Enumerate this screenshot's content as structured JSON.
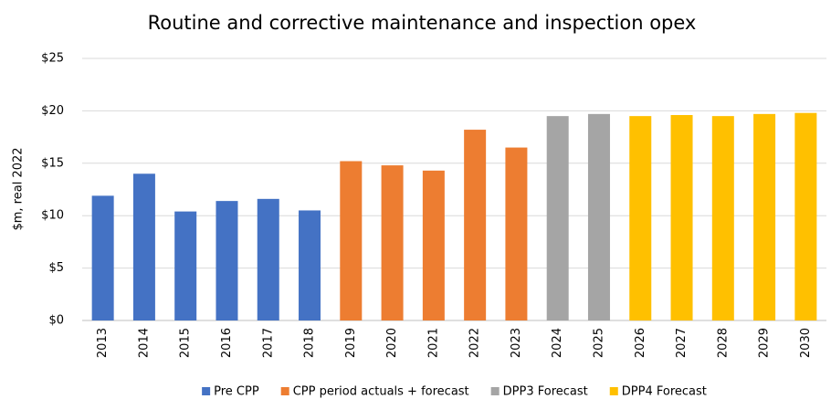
{
  "chart_data": {
    "type": "bar",
    "title": "Routine and corrective maintenance and inspection opex",
    "y_label": "$m, real 2022",
    "categories": [
      "2013",
      "2014",
      "2015",
      "2016",
      "2017",
      "2018",
      "2019",
      "2020",
      "2021",
      "2022",
      "2023",
      "2024",
      "2025",
      "2026",
      "2027",
      "2028",
      "2029",
      "2030"
    ],
    "series": [
      {
        "name": "Pre CPP",
        "color": "#4472c4",
        "values": [
          11.9,
          14.0,
          10.4,
          11.4,
          11.6,
          10.5,
          null,
          null,
          null,
          null,
          null,
          null,
          null,
          null,
          null,
          null,
          null,
          null
        ]
      },
      {
        "name": "CPP period actuals + forecast",
        "color": "#ed7d31",
        "values": [
          null,
          null,
          null,
          null,
          null,
          null,
          15.2,
          14.8,
          14.3,
          18.2,
          16.5,
          null,
          null,
          null,
          null,
          null,
          null,
          null
        ]
      },
      {
        "name": "DPP3 Forecast",
        "color": "#a5a5a5",
        "values": [
          null,
          null,
          null,
          null,
          null,
          null,
          null,
          null,
          null,
          null,
          null,
          19.5,
          19.7,
          null,
          null,
          null,
          null,
          null
        ]
      },
      {
        "name": "DPP4 Forecast",
        "color": "#ffc000",
        "values": [
          null,
          null,
          null,
          null,
          null,
          null,
          null,
          null,
          null,
          null,
          null,
          null,
          null,
          19.5,
          19.6,
          19.5,
          19.7,
          19.8
        ]
      }
    ],
    "ylim": [
      0,
      25
    ],
    "yticks": [
      {
        "value": 0,
        "label": "$0"
      },
      {
        "value": 5,
        "label": "$5"
      },
      {
        "value": 10,
        "label": "$10"
      },
      {
        "value": 15,
        "label": "$15"
      },
      {
        "value": 20,
        "label": "$20"
      },
      {
        "value": 25,
        "label": "$25"
      }
    ],
    "grid": true,
    "legend": "bottom"
  }
}
